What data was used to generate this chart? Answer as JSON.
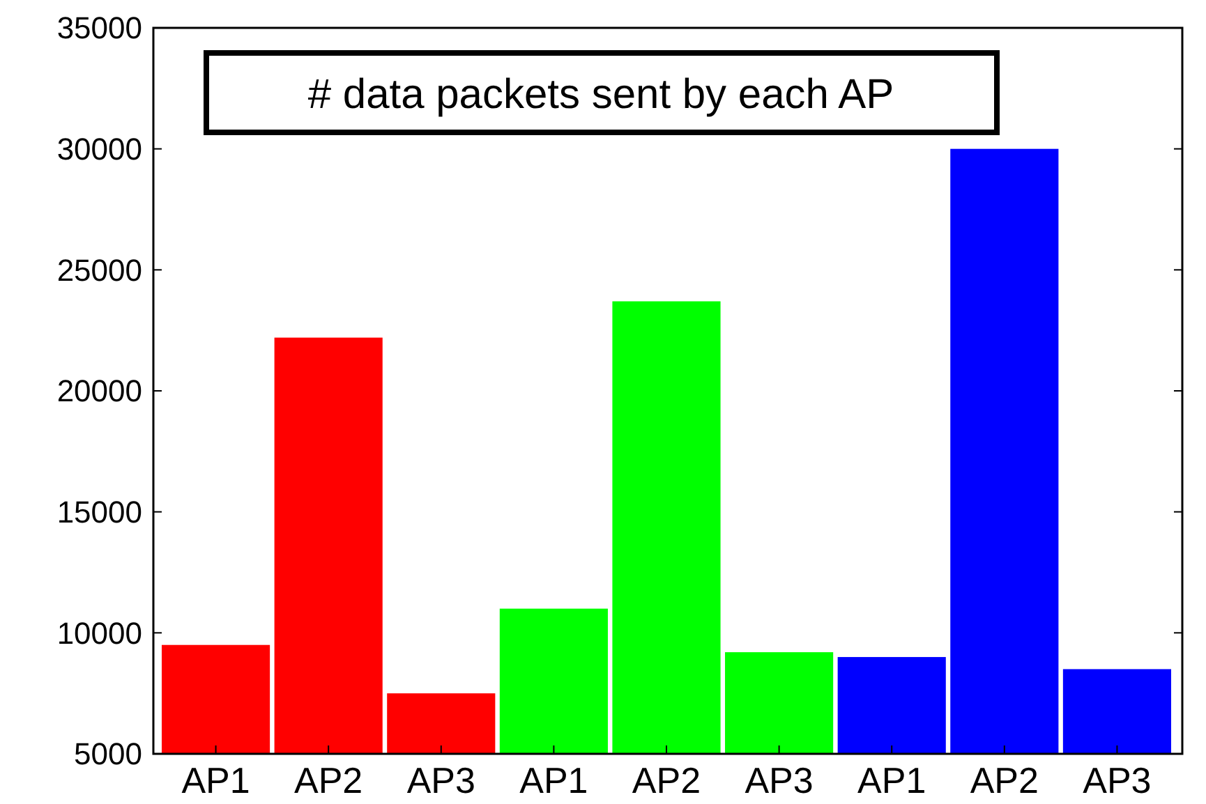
{
  "chart_data": {
    "type": "bar",
    "title": "# data packets sent by each AP",
    "categories": [
      "AP1",
      "AP2",
      "AP3",
      "AP1",
      "AP2",
      "AP3",
      "AP1",
      "AP2",
      "AP3"
    ],
    "values": [
      9500,
      22200,
      7500,
      11000,
      23700,
      9200,
      9000,
      30000,
      8500
    ],
    "colors": [
      "#ff0000",
      "#ff0000",
      "#ff0000",
      "#00ff00",
      "#00ff00",
      "#00ff00",
      "#0000ff",
      "#0000ff",
      "#0000ff"
    ],
    "ylim": [
      5000,
      35000
    ],
    "yticks": [
      5000,
      10000,
      15000,
      20000,
      25000,
      30000,
      35000
    ],
    "grid": false
  }
}
